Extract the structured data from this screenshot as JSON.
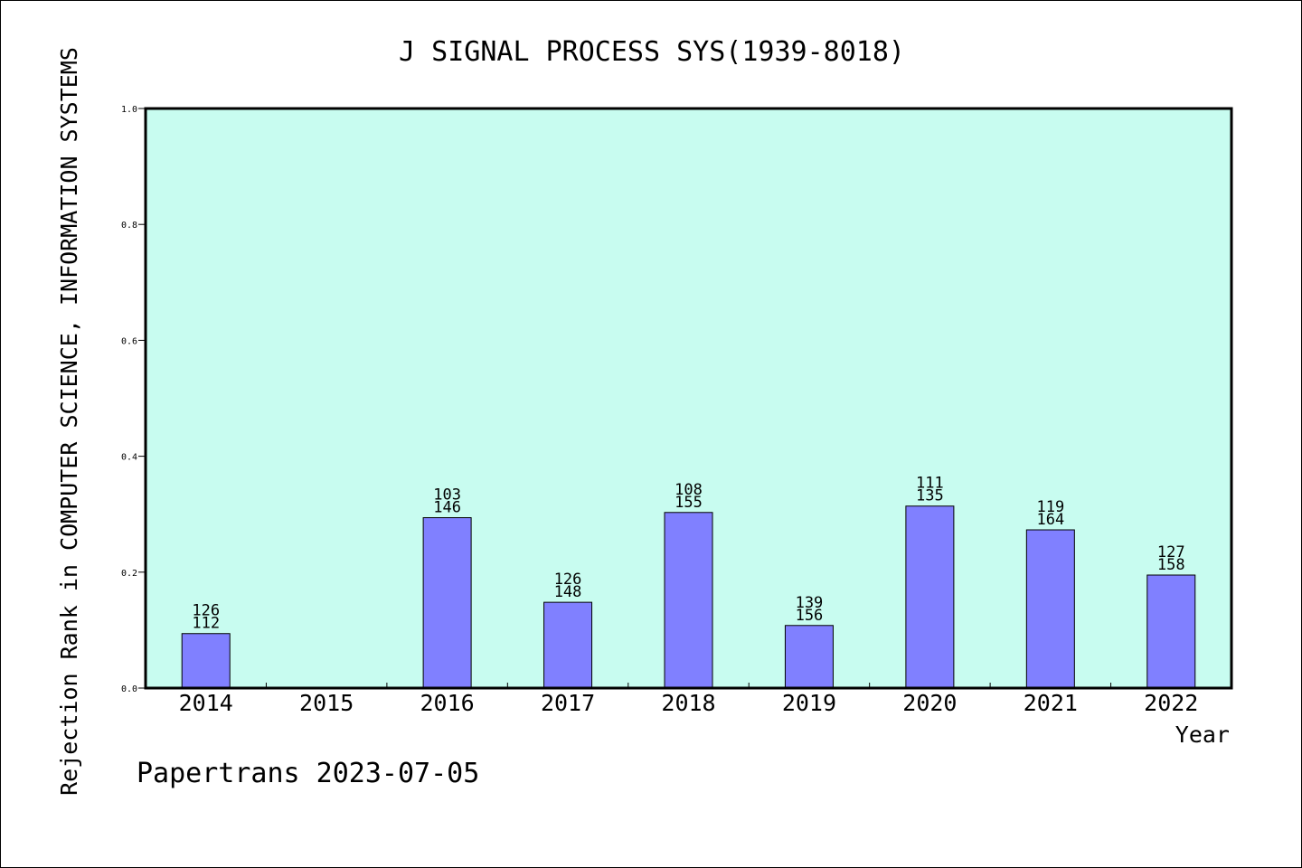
{
  "chart_data": {
    "type": "bar",
    "title": "J SIGNAL PROCESS SYS(1939-8018)",
    "xlabel": "Year",
    "ylabel": "Rejection Rank in COMPUTER SCIENCE, INFORMATION SYSTEMS",
    "categories": [
      "2014",
      "2015",
      "2016",
      "2017",
      "2018",
      "2019",
      "2020",
      "2021",
      "2022"
    ],
    "values": [
      0.094,
      null,
      0.294,
      0.148,
      0.303,
      0.108,
      0.314,
      0.273,
      0.195
    ],
    "bar_labels": [
      [
        "126",
        "112"
      ],
      [],
      [
        "103",
        "146"
      ],
      [
        "126",
        "148"
      ],
      [
        "108",
        "155"
      ],
      [
        "139",
        "156"
      ],
      [
        "111",
        "135"
      ],
      [
        "119",
        "164"
      ],
      [
        "127",
        "158"
      ]
    ],
    "yticks": [
      "0.0",
      "0.2",
      "0.4",
      "0.6",
      "0.8",
      "1.0"
    ],
    "ylim": [
      0,
      1
    ],
    "grid": false,
    "colors": {
      "plot_bg": "#c8fcf0",
      "bar": "#8080ff",
      "axis": "#000000"
    }
  },
  "footer": "Papertrans 2023-07-05"
}
